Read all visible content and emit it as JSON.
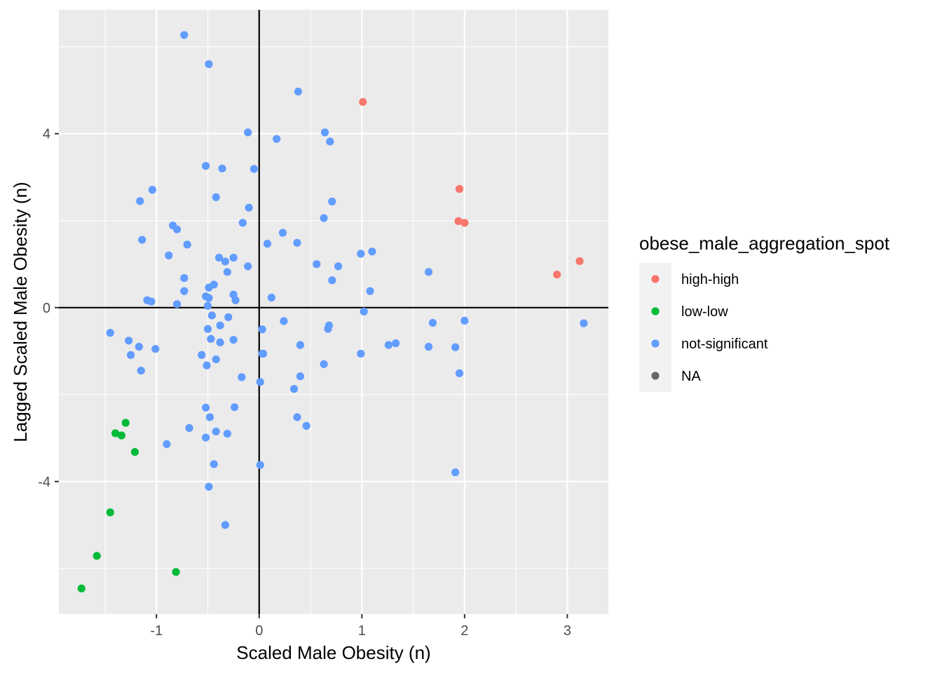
{
  "chart_data": {
    "type": "scatter",
    "xlabel": "Scaled Male Obesity (n)",
    "ylabel": "Lagged Scaled Male Obesity (n)",
    "xlim": [
      -1.95,
      3.4
    ],
    "ylim": [
      -7.05,
      6.85
    ],
    "x_ticks": [
      -1,
      0,
      1,
      2,
      3
    ],
    "x_tick_labels": [
      "-1",
      "0",
      "1",
      "2",
      "3"
    ],
    "y_ticks": [
      -4,
      0,
      4
    ],
    "y_tick_labels": [
      "-4",
      "0",
      "4"
    ],
    "reference_lines": {
      "x": 0,
      "y": 0
    },
    "grid": true,
    "legend": {
      "title": "obese_male_aggregation_spot",
      "placement": "right",
      "entries": [
        {
          "label": "high-high",
          "color": "#F8766D"
        },
        {
          "label": "low-low",
          "color": "#00BA38"
        },
        {
          "label": "not-significant",
          "color": "#619CFF"
        },
        {
          "label": "NA",
          "color": "#666666"
        }
      ]
    },
    "series": [
      {
        "name": "high-high",
        "color": "#F8766D",
        "points": [
          [
            1.01,
            4.73
          ],
          [
            1.95,
            2.73
          ],
          [
            1.94,
            1.99
          ],
          [
            2.0,
            1.95
          ],
          [
            2.9,
            0.76
          ],
          [
            3.12,
            1.07
          ]
        ]
      },
      {
        "name": "low-low",
        "color": "#00BA38",
        "points": [
          [
            -1.3,
            -2.65
          ],
          [
            -1.4,
            -2.89
          ],
          [
            -1.34,
            -2.94
          ],
          [
            -1.21,
            -3.32
          ],
          [
            -1.45,
            -4.71
          ],
          [
            -1.58,
            -5.71
          ],
          [
            -1.73,
            -6.46
          ],
          [
            -0.81,
            -6.08
          ]
        ]
      },
      {
        "name": "not-significant",
        "color": "#619CFF",
        "points": [
          [
            -0.73,
            6.27
          ],
          [
            -0.49,
            5.6
          ],
          [
            0.38,
            4.97
          ],
          [
            -0.11,
            4.03
          ],
          [
            0.64,
            4.03
          ],
          [
            0.17,
            3.88
          ],
          [
            0.69,
            3.82
          ],
          [
            -0.52,
            3.26
          ],
          [
            -0.36,
            3.2
          ],
          [
            -0.05,
            3.19
          ],
          [
            -1.04,
            2.71
          ],
          [
            -0.42,
            2.54
          ],
          [
            -1.16,
            2.45
          ],
          [
            0.71,
            2.44
          ],
          [
            -0.1,
            2.3
          ],
          [
            0.63,
            2.06
          ],
          [
            -0.16,
            1.95
          ],
          [
            -0.84,
            1.89
          ],
          [
            -0.8,
            1.8
          ],
          [
            0.23,
            1.72
          ],
          [
            -1.14,
            1.56
          ],
          [
            0.08,
            1.47
          ],
          [
            0.37,
            1.49
          ],
          [
            -0.7,
            1.45
          ],
          [
            0.99,
            1.24
          ],
          [
            1.1,
            1.29
          ],
          [
            -0.88,
            1.2
          ],
          [
            -0.39,
            1.15
          ],
          [
            -0.25,
            1.15
          ],
          [
            -0.33,
            1.06
          ],
          [
            0.56,
            1.0
          ],
          [
            0.77,
            0.95
          ],
          [
            -0.11,
            0.95
          ],
          [
            -0.31,
            0.82
          ],
          [
            1.65,
            0.82
          ],
          [
            -0.73,
            0.68
          ],
          [
            0.71,
            0.63
          ],
          [
            -0.44,
            0.53
          ],
          [
            -0.49,
            0.46
          ],
          [
            -0.73,
            0.38
          ],
          [
            1.08,
            0.38
          ],
          [
            -0.25,
            0.3
          ],
          [
            -0.52,
            0.26
          ],
          [
            -0.49,
            0.22
          ],
          [
            0.12,
            0.23
          ],
          [
            -0.23,
            0.17
          ],
          [
            -1.09,
            0.17
          ],
          [
            -1.05,
            0.14
          ],
          [
            -0.8,
            0.08
          ],
          [
            -0.5,
            0.04
          ],
          [
            1.02,
            -0.09
          ],
          [
            -0.46,
            -0.18
          ],
          [
            -0.3,
            -0.22
          ],
          [
            2.0,
            -0.3
          ],
          [
            1.69,
            -0.35
          ],
          [
            0.24,
            -0.31
          ],
          [
            0.68,
            -0.41
          ],
          [
            -0.38,
            -0.41
          ],
          [
            3.16,
            -0.36
          ],
          [
            -0.5,
            -0.49
          ],
          [
            0.03,
            -0.5
          ],
          [
            0.67,
            -0.49
          ],
          [
            -1.45,
            -0.58
          ],
          [
            -1.27,
            -0.76
          ],
          [
            -0.47,
            -0.72
          ],
          [
            -0.25,
            -0.74
          ],
          [
            -0.38,
            -0.8
          ],
          [
            0.4,
            -0.86
          ],
          [
            1.33,
            -0.82
          ],
          [
            1.26,
            -0.86
          ],
          [
            1.65,
            -0.9
          ],
          [
            1.91,
            -0.91
          ],
          [
            -1.17,
            -0.9
          ],
          [
            -1.01,
            -0.95
          ],
          [
            -1.25,
            -1.09
          ],
          [
            -0.56,
            -1.09
          ],
          [
            0.03,
            -1.06
          ],
          [
            0.04,
            -1.06
          ],
          [
            0.99,
            -1.06
          ],
          [
            -0.42,
            -1.19
          ],
          [
            0.63,
            -1.3
          ],
          [
            -0.51,
            -1.33
          ],
          [
            -1.15,
            -1.45
          ],
          [
            1.95,
            -1.51
          ],
          [
            0.4,
            -1.58
          ],
          [
            -0.17,
            -1.6
          ],
          [
            0.01,
            -1.71
          ],
          [
            0.34,
            -1.87
          ],
          [
            -0.52,
            -2.3
          ],
          [
            -0.24,
            -2.29
          ],
          [
            -0.48,
            -2.52
          ],
          [
            0.37,
            -2.52
          ],
          [
            0.46,
            -2.72
          ],
          [
            -0.68,
            -2.77
          ],
          [
            -0.42,
            -2.85
          ],
          [
            -0.31,
            -2.9
          ],
          [
            -0.52,
            -2.99
          ],
          [
            -0.9,
            -3.14
          ],
          [
            -0.44,
            -3.6
          ],
          [
            0.01,
            -3.62
          ],
          [
            1.91,
            -3.79
          ],
          [
            -0.49,
            -4.12
          ],
          [
            -0.33,
            -5.0
          ]
        ]
      }
    ]
  }
}
